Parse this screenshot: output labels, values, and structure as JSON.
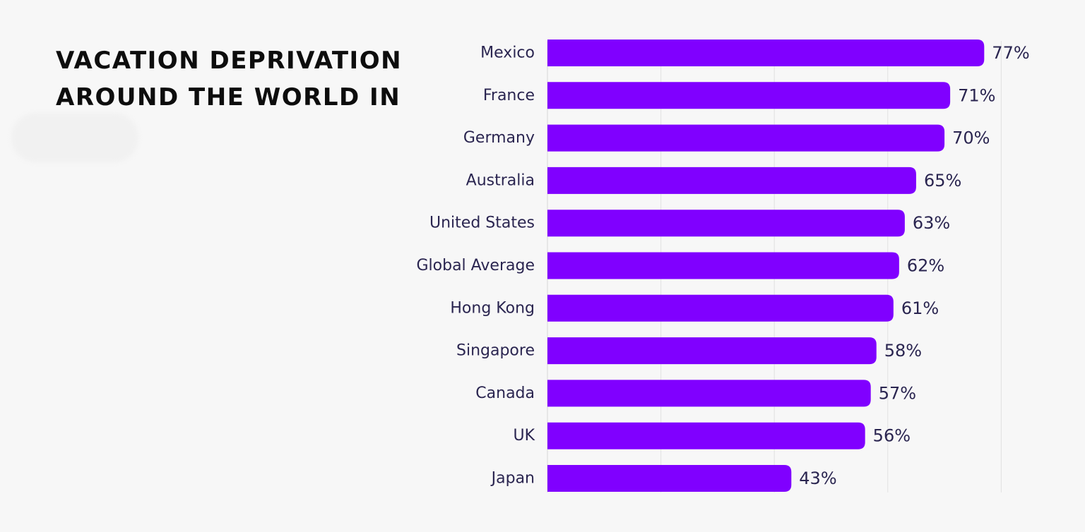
{
  "title": "VACATION DEPRIVATION AROUND THE WORLD IN",
  "colors": {
    "bar": "#8000ff",
    "label": "#2a2550",
    "grid": "#e2e2e2",
    "background": "#f7f7f7"
  },
  "chart_data": {
    "type": "bar",
    "orientation": "horizontal",
    "categories": [
      "Mexico",
      "France",
      "Germany",
      "Australia",
      "United States",
      "Global Average",
      "Hong Kong",
      "Singapore",
      "Canada",
      "UK",
      "Japan"
    ],
    "values": [
      77,
      71,
      70,
      65,
      63,
      62,
      61,
      58,
      57,
      56,
      43
    ],
    "value_labels": [
      "77%",
      "71%",
      "70%",
      "65%",
      "63%",
      "62%",
      "61%",
      "58%",
      "57%",
      "56%",
      "43%"
    ],
    "xlim": [
      0,
      80
    ],
    "grid_interval": 20,
    "grid": true,
    "legend": "none"
  }
}
